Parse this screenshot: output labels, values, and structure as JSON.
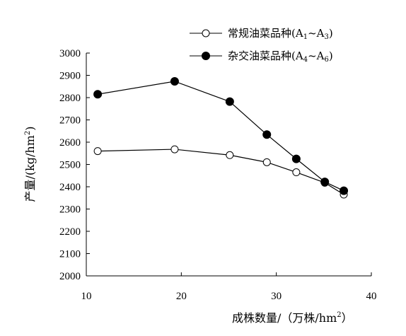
{
  "chart_data": {
    "type": "line",
    "xlabel": {
      "main": "成株数量/（万株/hm",
      "sup": "2",
      "end": "）"
    },
    "ylabel": {
      "main": "产量/(kg/hm",
      "sup": "2",
      "end": ")"
    },
    "xlim": [
      10,
      40
    ],
    "ylim": [
      2000,
      3000
    ],
    "xticks": [
      10,
      20,
      30,
      40
    ],
    "yticks": [
      2000,
      2100,
      2200,
      2300,
      2400,
      2500,
      2600,
      2700,
      2800,
      2900,
      3000
    ],
    "grid": false,
    "legend_position": "top-right",
    "series": [
      {
        "name": "常规油菜品种(A1~A3)",
        "legend_parts": [
          "常规油菜品种(A",
          "1",
          "~A",
          "3",
          ")"
        ],
        "marker": "open-circle",
        "color": "#000000",
        "x": [
          11.2,
          19.3,
          25.1,
          29.0,
          32.1,
          35.1,
          37.1
        ],
        "y": [
          2560,
          2568,
          2542,
          2510,
          2465,
          2418,
          2365
        ]
      },
      {
        "name": "杂交油菜品种(A4~A6)",
        "legend_parts": [
          "杂交油菜品种(A",
          "4",
          "~A",
          "6",
          ")"
        ],
        "marker": "filled-circle",
        "color": "#000000",
        "x": [
          11.2,
          19.3,
          25.1,
          29.0,
          32.1,
          35.1,
          37.1
        ],
        "y": [
          2815,
          2873,
          2782,
          2634,
          2525,
          2422,
          2382
        ]
      }
    ]
  }
}
